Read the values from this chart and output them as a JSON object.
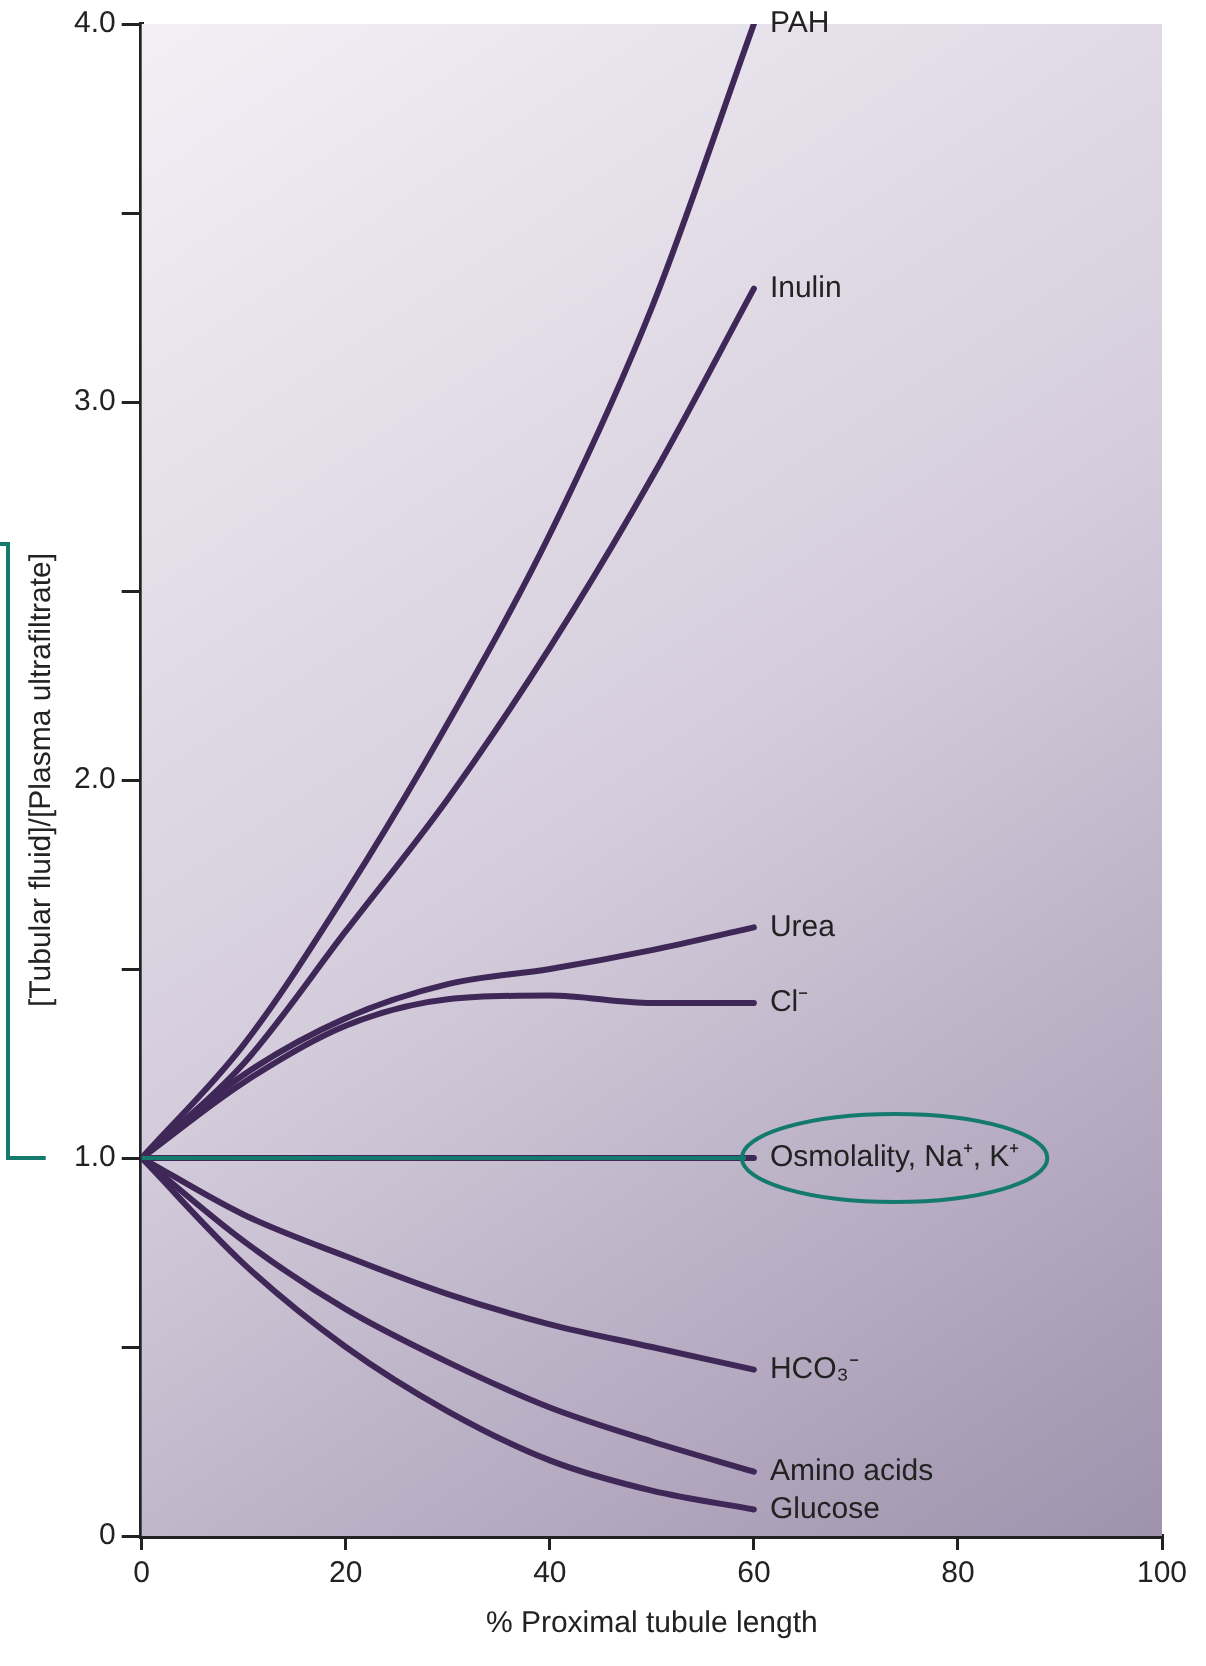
{
  "chart_data": {
    "type": "line",
    "xlabel": "% Proximal tubule length",
    "ylabel": "[Tubular fluid]/[Plasma ultrafiltrate]",
    "xlim": [
      0,
      100
    ],
    "xticks": [
      0,
      20,
      40,
      60,
      80,
      100
    ],
    "ylim": [
      0,
      4
    ],
    "yticks": [
      0,
      {
        "value": 0.5,
        "label": null
      },
      {
        "value": 1,
        "label": "1.0"
      },
      {
        "value": 1.5,
        "label": null
      },
      {
        "value": 2,
        "label": "2.0"
      },
      {
        "value": 2.5,
        "label": null
      },
      {
        "value": 3,
        "label": "3.0"
      },
      {
        "value": 3.5,
        "label": null
      },
      {
        "value": 4,
        "label": "4.0"
      }
    ],
    "x": [
      0,
      10,
      20,
      30,
      40,
      50,
      60
    ],
    "grid": false,
    "legend": false,
    "marker": "none",
    "line_style": "solid",
    "series": [
      {
        "name": "PAH",
        "color": "#3f2758",
        "values": [
          1.0,
          1.3,
          1.7,
          2.15,
          2.65,
          3.25,
          4.0
        ]
      },
      {
        "name": "Inulin",
        "color": "#3f2758",
        "values": [
          1.0,
          1.25,
          1.6,
          1.95,
          2.35,
          2.8,
          3.3
        ]
      },
      {
        "name": "Urea",
        "color": "#3f2758",
        "values": [
          1.0,
          1.22,
          1.37,
          1.46,
          1.5,
          1.55,
          1.61
        ]
      },
      {
        "name": "Cl⁻",
        "color": "#3f2758",
        "values": [
          1.0,
          1.2,
          1.35,
          1.42,
          1.43,
          1.41,
          1.41
        ]
      },
      {
        "name": "Osmolality, Na⁺, K⁺",
        "color": "#3f2758",
        "values": [
          1.0,
          1.0,
          1.0,
          1.0,
          1.0,
          1.0,
          1.0
        ]
      },
      {
        "name": "HCO₃⁻",
        "color": "#3f2758",
        "values": [
          1.0,
          0.85,
          0.74,
          0.64,
          0.56,
          0.5,
          0.44
        ]
      },
      {
        "name": "Amino acids",
        "color": "#3f2758",
        "values": [
          1.0,
          0.78,
          0.6,
          0.46,
          0.34,
          0.25,
          0.17
        ]
      },
      {
        "name": "Glucose",
        "color": "#3f2758",
        "values": [
          1.0,
          0.72,
          0.5,
          0.33,
          0.2,
          0.12,
          0.07
        ]
      }
    ]
  }
}
